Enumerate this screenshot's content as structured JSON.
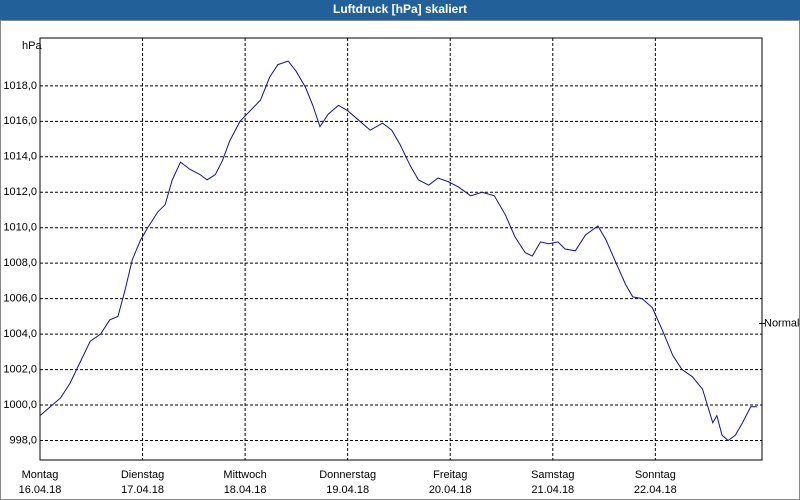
{
  "chart_data": {
    "type": "line",
    "title": "Luftdruck [hPa] skaliert",
    "y_label": "hPa",
    "x": [
      0,
      0.1,
      0.2,
      0.29,
      0.39,
      0.49,
      0.59,
      0.68,
      0.76,
      0.83,
      0.9,
      0.98,
      1.05,
      1.15,
      1.22,
      1.29,
      1.37,
      1.46,
      1.56,
      1.63,
      1.71,
      1.78,
      1.85,
      1.95,
      2.05,
      2.15,
      2.24,
      2.32,
      2.42,
      2.5,
      2.59,
      2.66,
      2.73,
      2.81,
      2.91,
      3.0,
      3.1,
      3.22,
      3.34,
      3.43,
      3.51,
      3.61,
      3.69,
      3.79,
      3.88,
      3.98,
      4.08,
      4.2,
      4.31,
      4.43,
      4.54,
      4.63,
      4.73,
      4.8,
      4.88,
      4.96,
      5.05,
      5.12,
      5.22,
      5.32,
      5.44,
      5.52,
      5.61,
      5.71,
      5.78,
      5.87,
      5.97,
      6.07,
      6.17,
      6.26,
      6.36,
      6.46,
      6.56,
      6.6,
      6.65,
      6.71,
      6.78,
      6.85,
      6.93,
      6.99
    ],
    "series": [
      {
        "color": "#1010a0",
        "values": [
          999.4,
          999.9,
          1000.4,
          1001.2,
          1002.4,
          1003.6,
          1004.0,
          1004.8,
          1005.0,
          1006.5,
          1008.2,
          1009.3,
          1010.0,
          1010.9,
          1011.3,
          1012.7,
          1013.7,
          1013.3,
          1013.0,
          1012.7,
          1013.0,
          1013.8,
          1014.9,
          1016.0,
          1016.6,
          1017.2,
          1018.5,
          1019.2,
          1019.4,
          1018.8,
          1017.9,
          1016.9,
          1015.7,
          1016.4,
          1016.9,
          1016.6,
          1016.1,
          1015.5,
          1015.9,
          1015.5,
          1014.7,
          1013.5,
          1012.7,
          1012.4,
          1012.8,
          1012.6,
          1012.3,
          1011.8,
          1012.0,
          1011.8,
          1010.7,
          1009.5,
          1008.6,
          1008.4,
          1009.2,
          1009.1,
          1009.2,
          1008.8,
          1008.7,
          1009.6,
          1010.1,
          1009.3,
          1008.1,
          1006.8,
          1006.1,
          1006.0,
          1005.5,
          1004.2,
          1002.8,
          1002.0,
          1001.6,
          1000.9,
          999.0,
          999.4,
          998.3,
          998.0,
          998.3,
          999.0,
          999.9,
          999.9
        ]
      }
    ],
    "xlim": [
      0,
      7.04
    ],
    "xticks": [
      {
        "value": 0,
        "label": [
          "Montag",
          "16.04.18"
        ]
      },
      {
        "value": 1,
        "label": [
          "Dienstag",
          "17.04.18"
        ]
      },
      {
        "value": 2,
        "label": [
          "Mittwoch",
          "18.04.18"
        ]
      },
      {
        "value": 3,
        "label": [
          "Donnerstag",
          "19.04.18"
        ]
      },
      {
        "value": 4,
        "label": [
          "Freitag",
          "20.04.18"
        ]
      },
      {
        "value": 5,
        "label": [
          "Samstag",
          "21.04.18"
        ]
      },
      {
        "value": 6,
        "label": [
          "Sonntag",
          "22.04.18"
        ]
      }
    ],
    "ylim": [
      996.9,
      1020.7
    ],
    "yticks": [
      {
        "value": 998,
        "label": "998,0"
      },
      {
        "value": 1000,
        "label": "1000,0"
      },
      {
        "value": 1002,
        "label": "1002,0"
      },
      {
        "value": 1004,
        "label": "1004,0"
      },
      {
        "value": 1006,
        "label": "1006,0"
      },
      {
        "value": 1008,
        "label": "1008,0"
      },
      {
        "value": 1010,
        "label": "1010,0"
      },
      {
        "value": 1012,
        "label": "1012,0"
      },
      {
        "value": 1014,
        "label": "1014,0"
      },
      {
        "value": 1016,
        "label": "1016,0"
      },
      {
        "value": 1018,
        "label": "1018,0"
      }
    ],
    "reference": {
      "value": 1004.6,
      "label": "Normal"
    },
    "grid": true
  }
}
